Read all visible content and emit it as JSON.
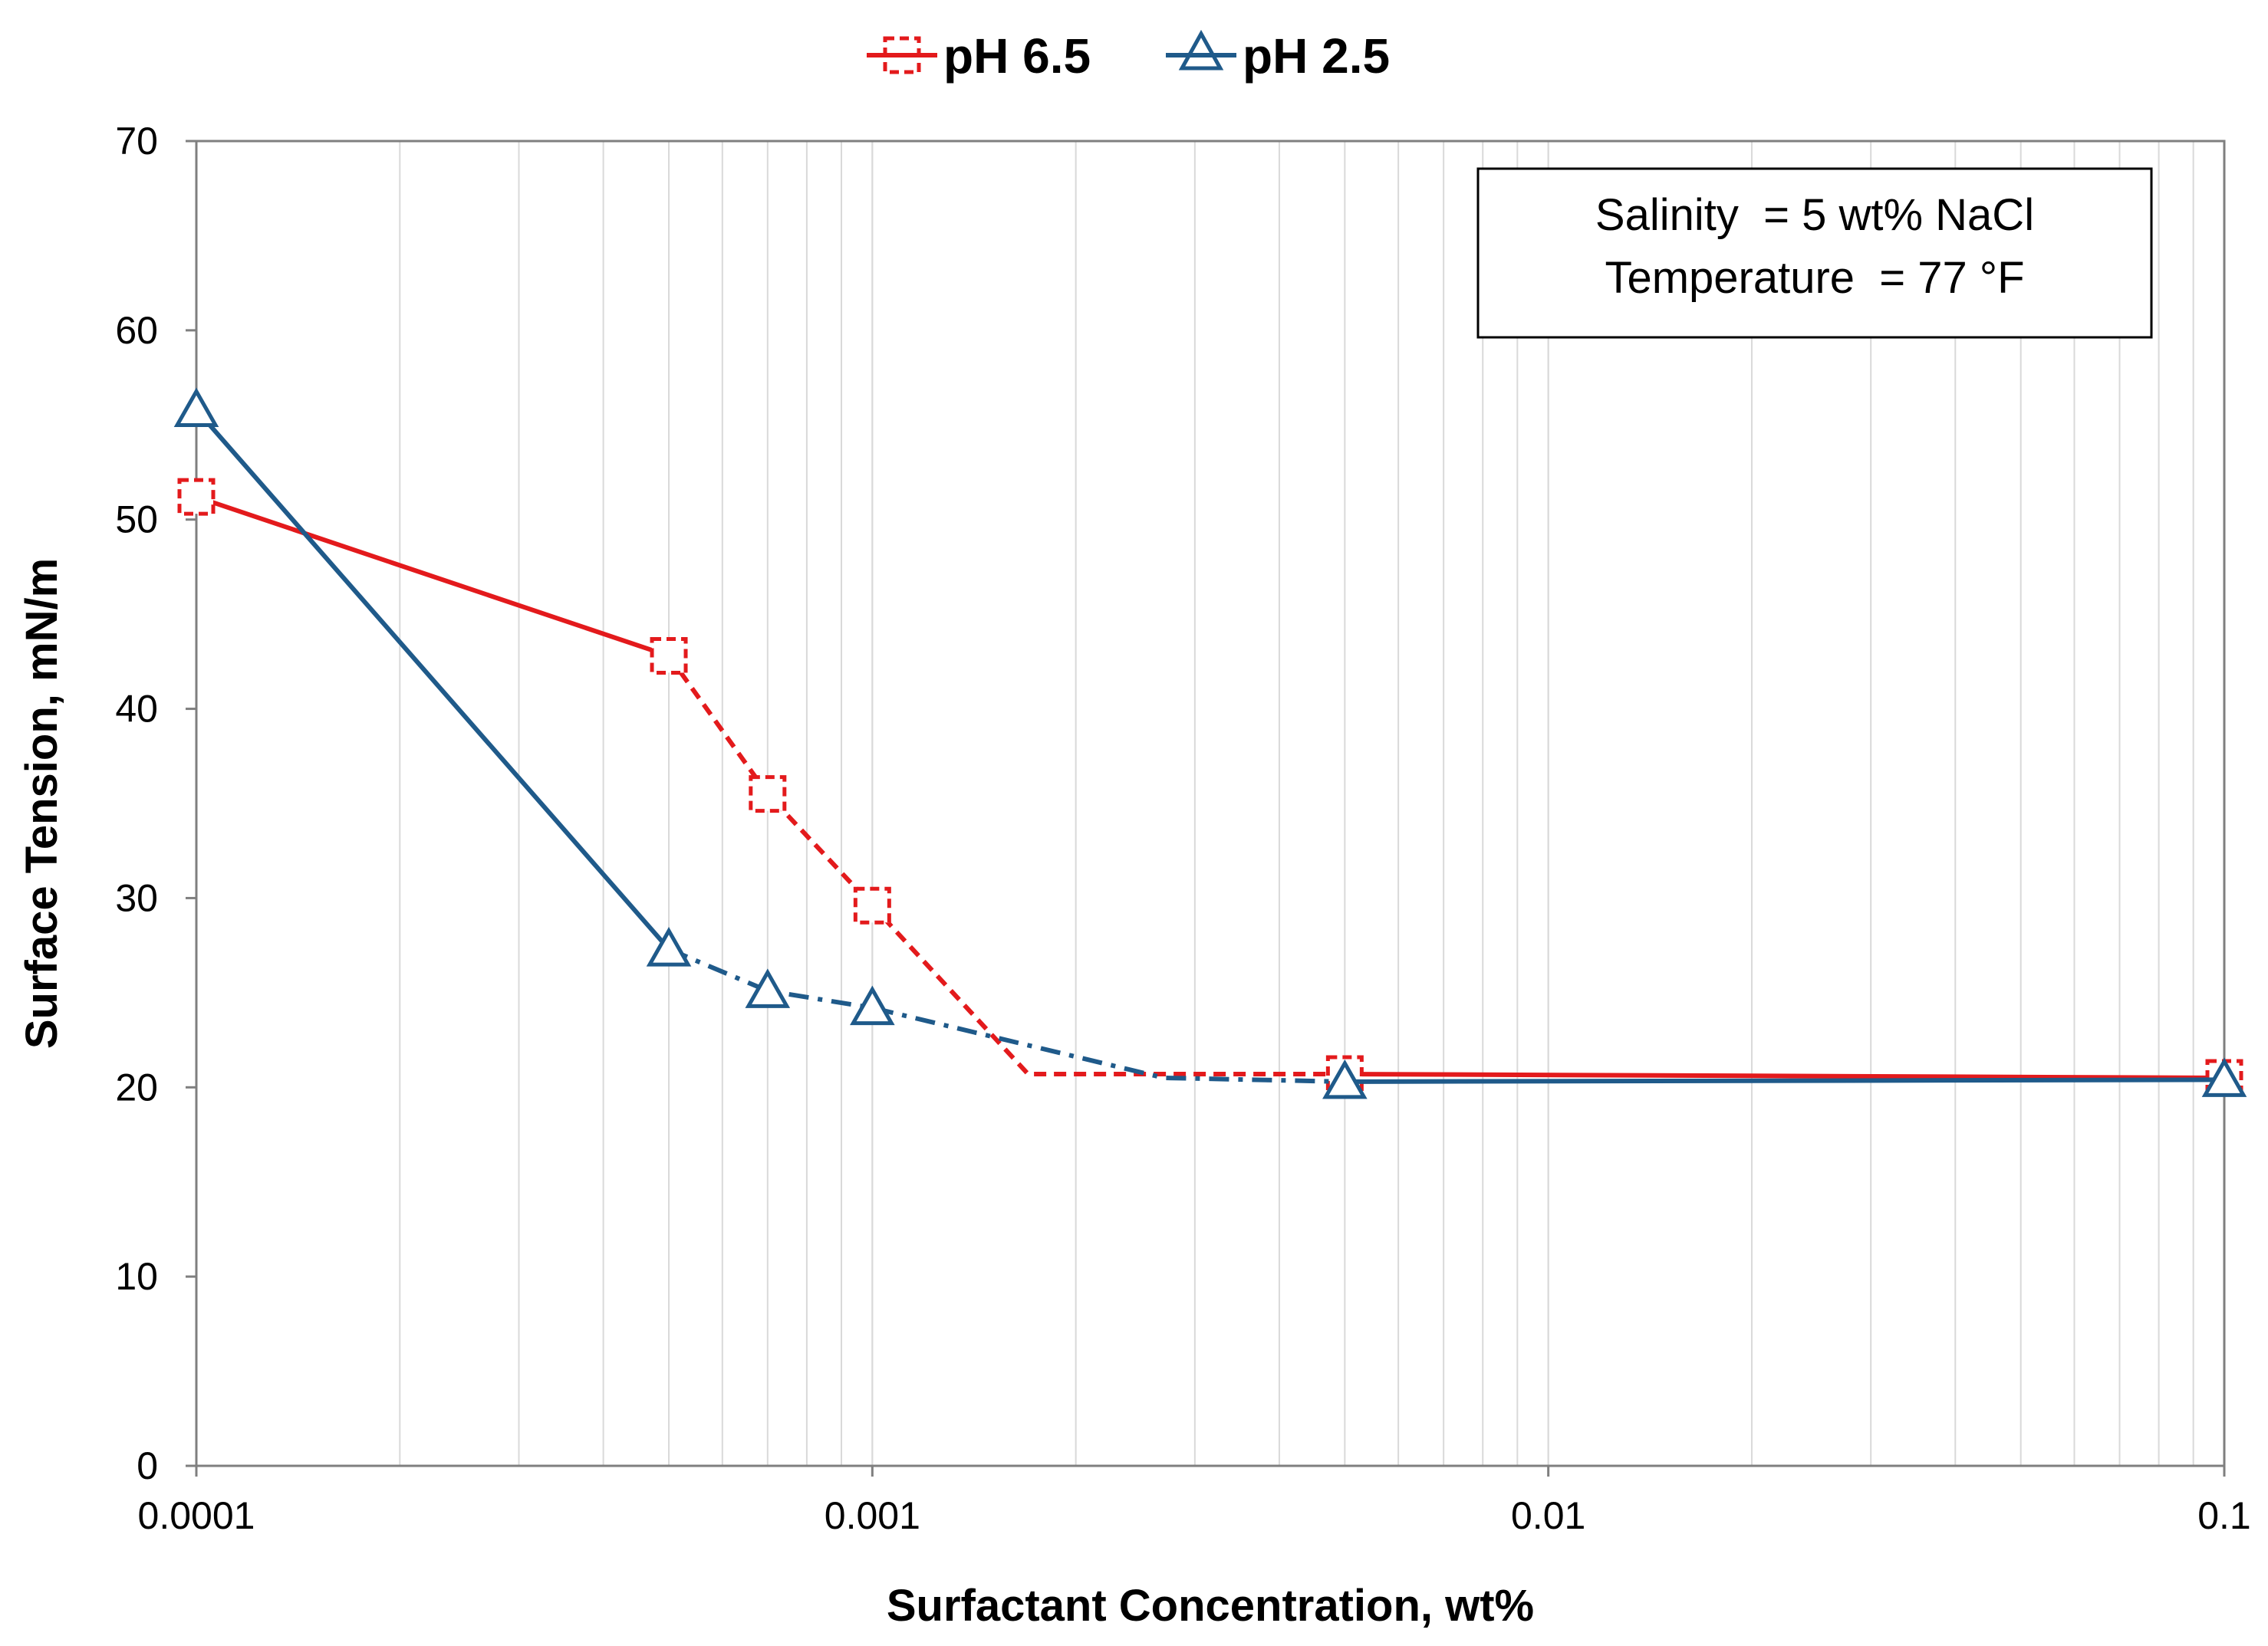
{
  "chart_data": {
    "type": "line",
    "title": "",
    "xlabel": "Surfactant Concentration, wt%",
    "ylabel": "Surface Tension, mN/m",
    "xscale": "log",
    "xlim": [
      0.0001,
      0.1
    ],
    "ylim": [
      0,
      70
    ],
    "xticks": [
      0.0001,
      0.001,
      0.01,
      0.1
    ],
    "xtick_labels": [
      "0.0001",
      "0.001",
      "0.01",
      "0.1"
    ],
    "yticks": [
      0,
      10,
      20,
      30,
      40,
      50,
      60,
      70
    ],
    "ytick_labels": [
      "0",
      "10",
      "20",
      "30",
      "40",
      "50",
      "60",
      "70"
    ],
    "grid": "vertical minor log gridlines",
    "legend_position": "top-center",
    "annotation": {
      "line1": "Salinity  = 5 wt% NaCl",
      "line2": "Temperature  = 77 °F",
      "position": "top-right"
    },
    "series": [
      {
        "name": "pH 6.5",
        "color": "#e31a1c",
        "marker": "dashed-square",
        "points": [
          {
            "x": 0.0001,
            "y": 51.2
          },
          {
            "x": 0.0005,
            "y": 42.8
          },
          {
            "x": 0.0007,
            "y": 35.5
          },
          {
            "x": 0.001,
            "y": 29.6
          },
          {
            "x": 0.005,
            "y": 20.7
          },
          {
            "x": 0.1,
            "y": 20.5
          }
        ],
        "fit_segments": [
          {
            "style": "solid",
            "points": [
              [
                0.0001,
                51.2
              ],
              [
                0.0005,
                42.8
              ]
            ]
          },
          {
            "style": "dashed",
            "points": [
              [
                0.0005,
                42.8
              ],
              [
                0.0007,
                35.5
              ],
              [
                0.001,
                29.6
              ],
              [
                0.0017,
                20.7
              ],
              [
                0.005,
                20.7
              ]
            ]
          },
          {
            "style": "solid",
            "points": [
              [
                0.005,
                20.7
              ],
              [
                0.1,
                20.5
              ]
            ]
          }
        ]
      },
      {
        "name": "pH 2.5",
        "color": "#1f5a8a",
        "marker": "triangle",
        "points": [
          {
            "x": 0.0001,
            "y": 55.8
          },
          {
            "x": 0.0005,
            "y": 27.3
          },
          {
            "x": 0.0007,
            "y": 25.1
          },
          {
            "x": 0.001,
            "y": 24.2
          },
          {
            "x": 0.005,
            "y": 20.3
          },
          {
            "x": 0.1,
            "y": 20.4
          }
        ],
        "fit_segments": [
          {
            "style": "solid",
            "points": [
              [
                0.0001,
                55.8
              ],
              [
                0.0005,
                27.3
              ]
            ]
          },
          {
            "style": "dash-dot",
            "points": [
              [
                0.0005,
                27.3
              ],
              [
                0.0007,
                25.1
              ],
              [
                0.001,
                24.2
              ],
              [
                0.0027,
                20.5
              ],
              [
                0.005,
                20.3
              ]
            ]
          },
          {
            "style": "solid",
            "points": [
              [
                0.005,
                20.3
              ],
              [
                0.1,
                20.4
              ]
            ]
          }
        ]
      }
    ]
  }
}
